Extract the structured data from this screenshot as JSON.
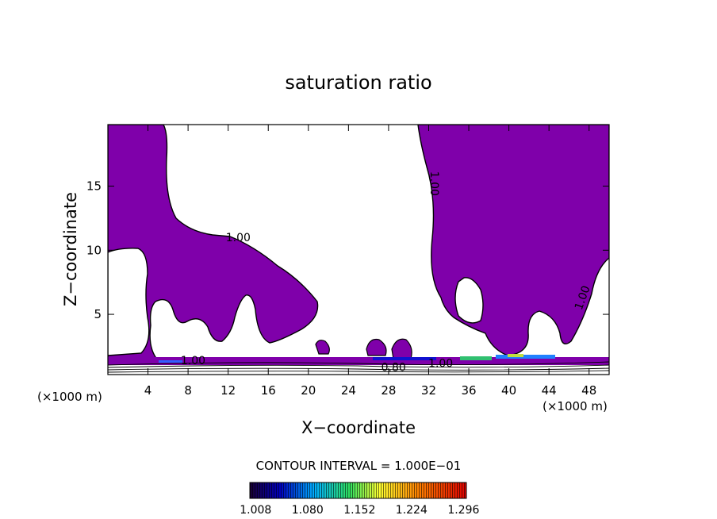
{
  "chart_data": {
    "type": "heatmap",
    "title": "saturation ratio",
    "xlabel": "X−coordinate",
    "ylabel": "Z−coordinate",
    "x_unit": "(×1000 m)",
    "y_unit": "(×1000 m)",
    "xlim": [
      0,
      50
    ],
    "ylim": [
      0.3,
      19.8
    ],
    "x_ticks": [
      4,
      8,
      12,
      16,
      20,
      24,
      28,
      32,
      36,
      40,
      44,
      48
    ],
    "y_ticks": [
      5,
      10,
      15
    ],
    "contour_interval": "CONTOUR INTERVAL = 1.000E−01",
    "contour_labels": [
      {
        "text": "1.00",
        "x": 13,
        "z": 11.0
      },
      {
        "text": "1.00",
        "x": 32.6,
        "z": 15.2
      },
      {
        "text": "1.00",
        "x": 47.3,
        "z": 6.3
      },
      {
        "text": "1.00",
        "x": 8.5,
        "z": 1.4
      },
      {
        "text": "0.80",
        "x": 28.5,
        "z": 0.9
      },
      {
        "text": "1.00",
        "x": 33.2,
        "z": 1.2
      }
    ],
    "colorbar": {
      "labels": [
        "1.008",
        "1.080",
        "1.152",
        "1.224",
        "1.296"
      ],
      "range": [
        1.0,
        1.3
      ],
      "colors": [
        "#1a0033",
        "#0000c0",
        "#00b0ff",
        "#30e060",
        "#ffff30",
        "#ff8000",
        "#e00000"
      ]
    },
    "fill_color": "#7f00aa"
  }
}
